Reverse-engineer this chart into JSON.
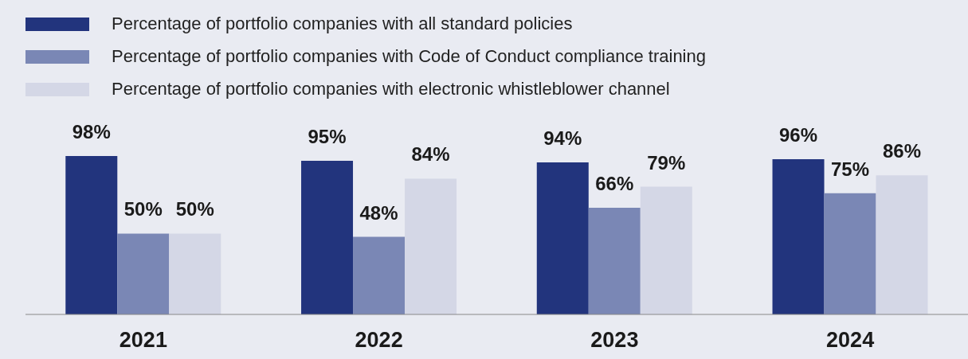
{
  "chart_data": {
    "type": "bar",
    "categories": [
      "2021",
      "2022",
      "2023",
      "2024"
    ],
    "series": [
      {
        "name": "Percentage of portfolio companies with all standard policies",
        "color": "#22347d",
        "values": [
          98,
          95,
          94,
          96
        ],
        "value_labels": [
          "98%",
          "95%",
          "94%",
          "96%"
        ]
      },
      {
        "name": "Percentage of portfolio companies with Code of Conduct compliance training",
        "color": "#7a87b5",
        "values": [
          50,
          48,
          66,
          75
        ],
        "value_labels": [
          "50%",
          "48%",
          "66%",
          "75%"
        ]
      },
      {
        "name": "Percentage of portfolio companies with electronic whistleblower channel",
        "color": "#d4d7e6",
        "values": [
          50,
          84,
          79,
          86
        ],
        "value_labels": [
          "50%",
          "84%",
          "79%",
          "86%"
        ]
      }
    ],
    "tick_labels": "x",
    "grid": false,
    "legend": "top left"
  }
}
